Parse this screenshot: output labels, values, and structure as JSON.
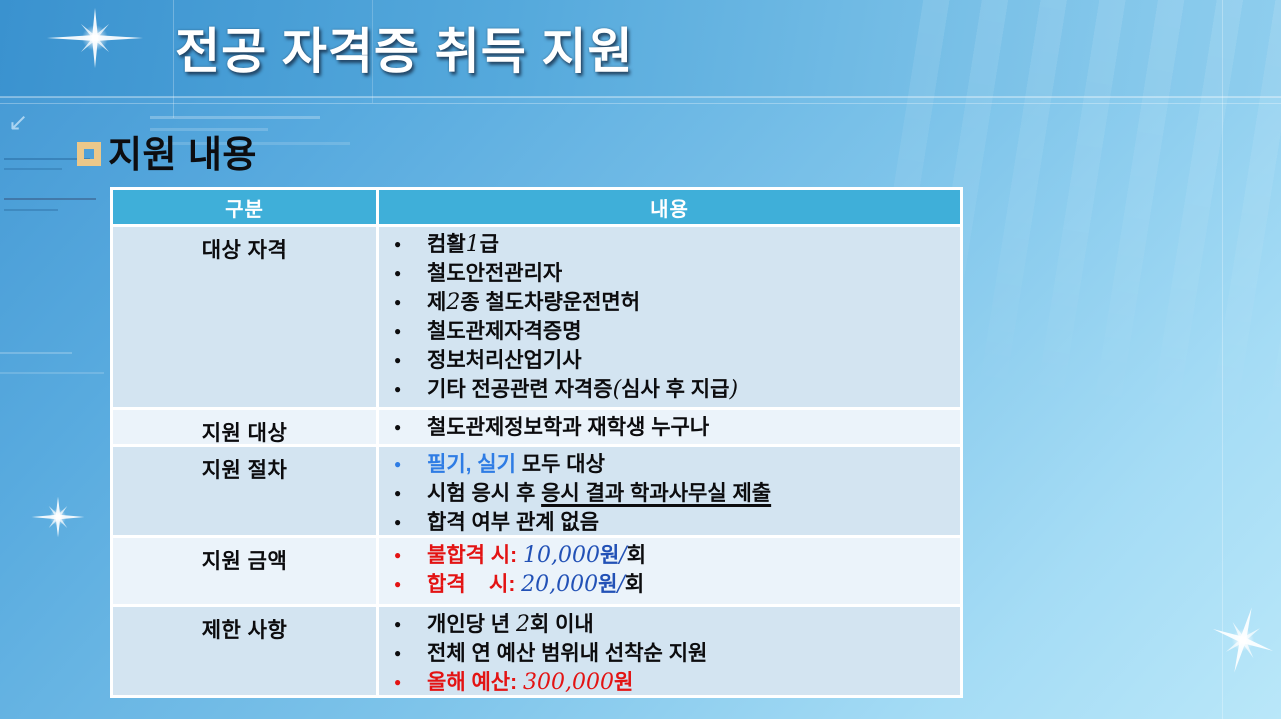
{
  "slide_title": "전공 자격증 취득 지원",
  "section": {
    "heading": "지원 내용"
  },
  "bullet_char": "●",
  "decor": {
    "arrow_char": "↙"
  },
  "table": {
    "columns": [
      "구분",
      "내용"
    ],
    "rows": [
      {
        "label": "대상 자격",
        "band": "a",
        "items": [
          {
            "segments": [
              {
                "t": "컴활"
              },
              {
                "t": "1",
                "num": true
              },
              {
                "t": "급"
              }
            ]
          },
          {
            "segments": [
              {
                "t": "철도안전관리자"
              }
            ]
          },
          {
            "segments": [
              {
                "t": "제"
              },
              {
                "t": "2",
                "num": true
              },
              {
                "t": "종 철도차량운전면허"
              }
            ]
          },
          {
            "segments": [
              {
                "t": "철도관제자격증명"
              }
            ]
          },
          {
            "segments": [
              {
                "t": "정보처리산업기사"
              }
            ]
          },
          {
            "segments": [
              {
                "t": "기타 전공관련 자격증"
              },
              {
                "t": "(",
                "num": true
              },
              {
                "t": "심사 후 지급"
              },
              {
                "t": ")",
                "num": true
              }
            ]
          }
        ]
      },
      {
        "label": "지원 대상",
        "band": "b",
        "items": [
          {
            "segments": [
              {
                "t": "철도관제정보학과 재학생 누구나"
              }
            ]
          }
        ]
      },
      {
        "label": "지원 절차",
        "band": "a",
        "items": [
          {
            "bullet": "blue",
            "segments": [
              {
                "t": "필기, 실기",
                "c": "blue"
              },
              {
                "t": " 모두 대상"
              }
            ]
          },
          {
            "segments": [
              {
                "t": "시험 응시 후 "
              },
              {
                "t": "응시 결과 학과사무실 제출",
                "b": true,
                "u": true
              }
            ]
          },
          {
            "segments": [
              {
                "t": "합격 여부 관계 없음"
              }
            ]
          }
        ]
      },
      {
        "label": "지원 금액",
        "band": "b",
        "items": [
          {
            "bullet": "red",
            "segments": [
              {
                "t": "불합격 시",
                "c": "red",
                "b": true
              },
              {
                "t": ":",
                "c": "red",
                "b": true
              },
              {
                "t": " "
              },
              {
                "t": "10,000",
                "c": "navy",
                "num": true
              },
              {
                "t": "원",
                "c": "navy",
                "b": true
              },
              {
                "t": "/",
                "c": "navy",
                "num": true
              },
              {
                "t": "회",
                "b": true
              }
            ]
          },
          {
            "bullet": "red",
            "segments": [
              {
                "t": "합격    시",
                "c": "red",
                "b": true
              },
              {
                "t": ":",
                "c": "red",
                "b": true
              },
              {
                "t": " "
              },
              {
                "t": "20,000",
                "c": "navy",
                "num": true
              },
              {
                "t": "원",
                "c": "navy",
                "b": true
              },
              {
                "t": "/",
                "c": "navy",
                "num": true
              },
              {
                "t": "회",
                "b": true
              }
            ]
          }
        ]
      },
      {
        "label": "제한 사항",
        "band": "a",
        "items": [
          {
            "segments": [
              {
                "t": "개인당 년 "
              },
              {
                "t": "2",
                "num": true
              },
              {
                "t": "회 이내"
              }
            ]
          },
          {
            "segments": [
              {
                "t": "전체 연 예산 범위내 선착순 지원"
              }
            ]
          },
          {
            "bullet": "red",
            "segments": [
              {
                "t": "올해 예산",
                "c": "red",
                "b": true
              },
              {
                "t": ":",
                "c": "red",
                "b": true
              },
              {
                "t": " "
              },
              {
                "t": "300,000",
                "c": "red",
                "num": true
              },
              {
                "t": "원",
                "c": "red",
                "b": true
              }
            ]
          }
        ]
      }
    ]
  },
  "colors": {
    "banner_gradient_start": "#3a92cf",
    "banner_gradient_end": "#8fceee",
    "bg_gradient_start": "#4397d3",
    "bg_gradient_end": "#b9e7f9",
    "table_header_bg": "#3fafd9",
    "row_band_light": "#d3e4f1",
    "row_band_lighter": "#ebf3fa",
    "text_black": "#0c0c0e",
    "text_red": "#e31313",
    "text_blue": "#2e7ce4",
    "text_navy": "#2251b6",
    "heading_bullet_gold": "#ebc88a",
    "table_border_white": "#ffffff"
  }
}
